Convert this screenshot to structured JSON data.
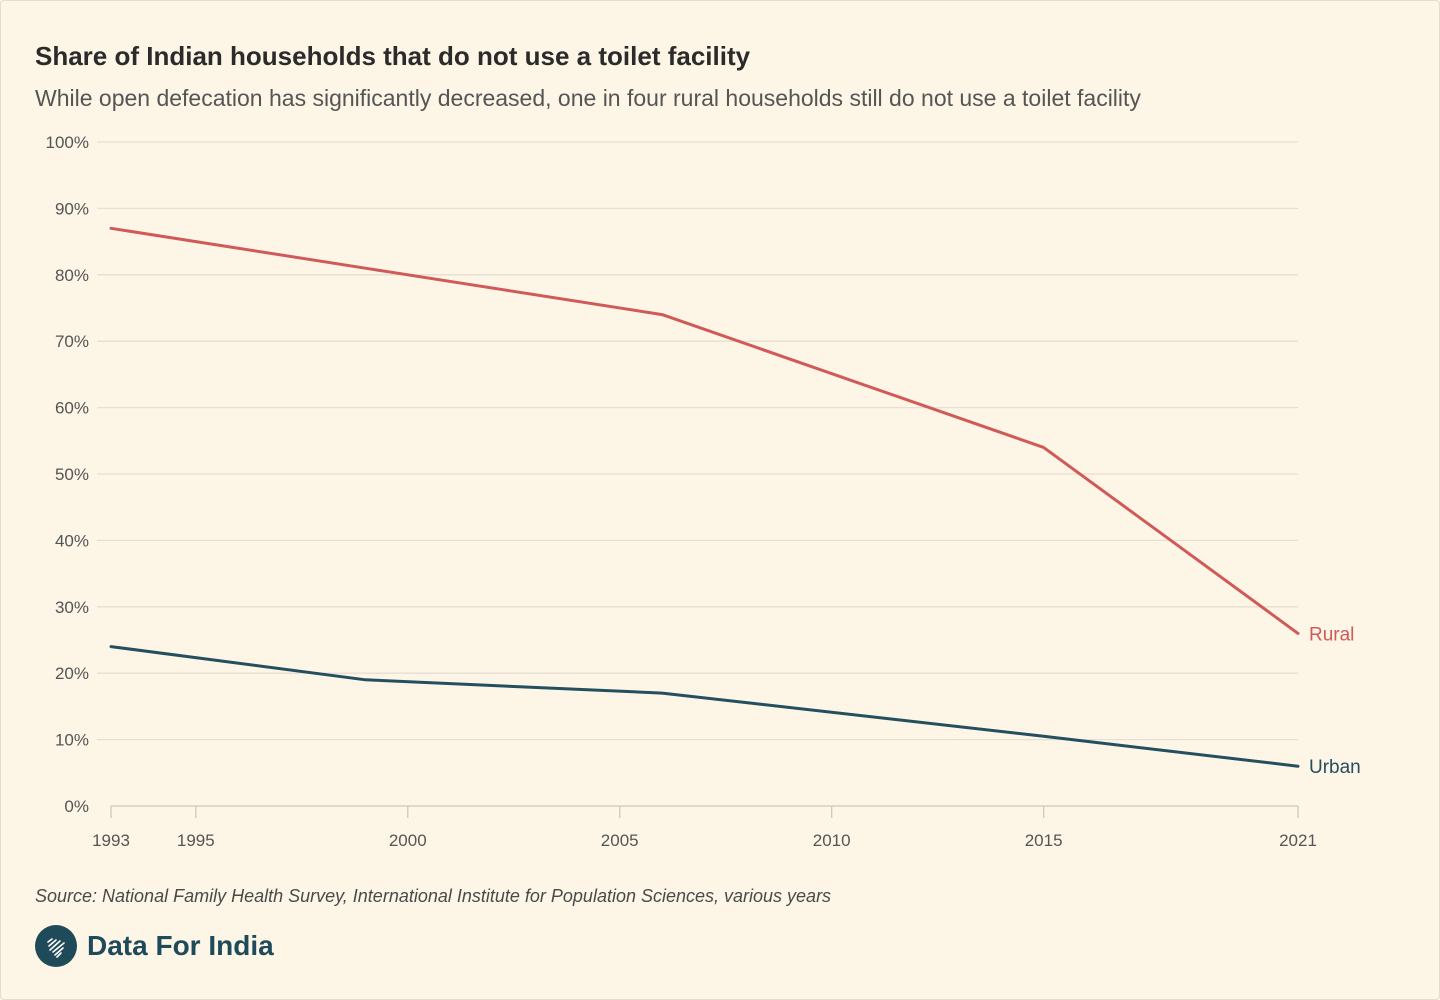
{
  "colors": {
    "background": "#fdf5e6",
    "rural": "#d05a57",
    "urban": "#234f5e",
    "grid": "#e6dfd2",
    "brand": "#1f4a59"
  },
  "chart_data": {
    "type": "line",
    "title": "Share of Indian households that do not use a toilet facility",
    "subtitle": "While open defecation has significantly decreased, one in four rural households still do not use a toilet facility",
    "xlabel": "",
    "ylabel": "",
    "xlim": [
      1993,
      2021
    ],
    "ylim": [
      0,
      100
    ],
    "x_ticks": [
      1993,
      1995,
      2000,
      2005,
      2010,
      2015,
      2021
    ],
    "y_ticks": [
      0,
      10,
      20,
      30,
      40,
      50,
      60,
      70,
      80,
      90,
      100
    ],
    "y_tick_labels": [
      "0%",
      "10%",
      "20%",
      "30%",
      "40%",
      "50%",
      "60%",
      "70%",
      "80%",
      "90%",
      "100%"
    ],
    "grid": true,
    "series": [
      {
        "name": "Rural",
        "color": "#d05a57",
        "points": [
          [
            1993,
            87
          ],
          [
            1999,
            81
          ],
          [
            2006,
            74
          ],
          [
            2015,
            54
          ],
          [
            2021,
            26
          ]
        ]
      },
      {
        "name": "Urban",
        "color": "#234f5e",
        "points": [
          [
            1993,
            24
          ],
          [
            1999,
            19
          ],
          [
            2006,
            17
          ],
          [
            2015,
            10.5
          ],
          [
            2021,
            6
          ]
        ]
      }
    ]
  },
  "footer": {
    "source": "Source: National Family Health Survey, International Institute for Population Sciences, various years",
    "brand": "Data For India",
    "logo_icon": "india-map-icon"
  }
}
